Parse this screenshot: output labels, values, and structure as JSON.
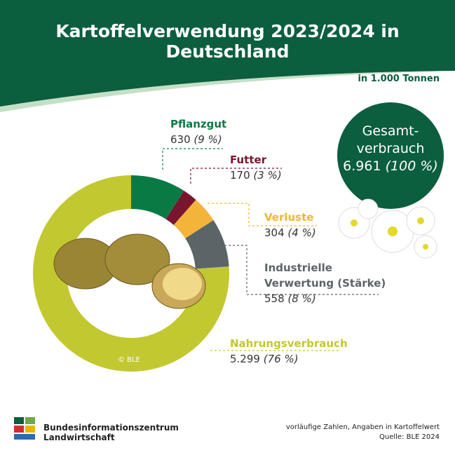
{
  "header": {
    "title": "Kartoffelverwendung 2023/2024 in Deutschland"
  },
  "chart_data": {
    "type": "donut",
    "unit": "in 1.000 Tonnen",
    "categories": [
      "Pflanzgut",
      "Futter",
      "Verluste",
      "Industrielle Verwertung (Stärke)",
      "Nahrungsverbrauch"
    ],
    "values": [
      630,
      170,
      304,
      558,
      5299
    ],
    "value_labels": [
      "630",
      "170",
      "304",
      "558",
      "5.299"
    ],
    "share_labels": [
      "(9 %)",
      "(3 %)",
      "(4 %)",
      "(8 %)",
      "(76 %)"
    ],
    "colors": [
      "#0a7a45",
      "#7a1530",
      "#f4b43a",
      "#5b6568",
      "#c2c830"
    ],
    "total": {
      "title": "Gesamt-verbrauch",
      "value": 6961,
      "value_label": "6.961",
      "share_label": "(100 %)"
    }
  },
  "footer": {
    "copyright": "© BLE",
    "organization": "Bundesinformationszentrum Landwirtschaft",
    "note": "vorläufige Zahlen, Angaben in Kartoffelwert",
    "source": "Quelle: BLE 2024"
  }
}
